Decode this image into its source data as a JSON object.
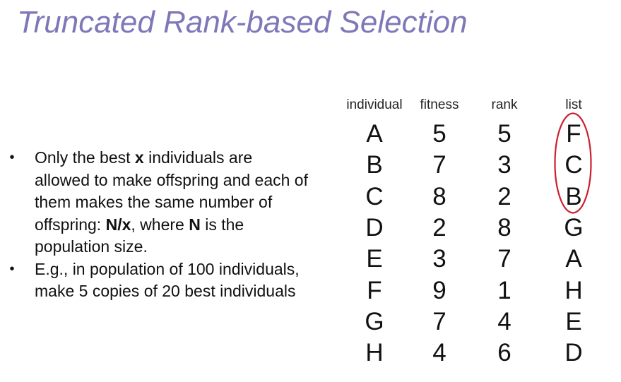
{
  "slide": {
    "title": "Truncated Rank-based Selection",
    "title_color": "#7e78b8",
    "bullets": [
      {
        "marker": "•",
        "segments": [
          {
            "text": "Only the best ",
            "bold": false
          },
          {
            "text": "x",
            "bold": true
          },
          {
            "text": " individuals are allowed to make offspring and each of them makes the same number of offspring: ",
            "bold": false
          },
          {
            "text": "N/x",
            "bold": true
          },
          {
            "text": ", where ",
            "bold": false
          },
          {
            "text": "N",
            "bold": true
          },
          {
            "text": " is the population size.",
            "bold": false
          }
        ]
      },
      {
        "marker": "•",
        "segments": [
          {
            "text": "E.g., in population of 100 individuals, make 5 copies of 20 best individuals",
            "bold": false
          }
        ]
      }
    ]
  },
  "table": {
    "headers": {
      "individual": "individual",
      "fitness": "fitness",
      "rank": "rank",
      "list": "list"
    },
    "rows": [
      {
        "individual": "A",
        "fitness": "5",
        "rank": "5",
        "list": "F"
      },
      {
        "individual": "B",
        "fitness": "7",
        "rank": "3",
        "list": "C"
      },
      {
        "individual": "C",
        "fitness": "8",
        "rank": "2",
        "list": "B"
      },
      {
        "individual": "D",
        "fitness": "2",
        "rank": "8",
        "list": "G"
      },
      {
        "individual": "E",
        "fitness": "3",
        "rank": "7",
        "list": "A"
      },
      {
        "individual": "F",
        "fitness": "9",
        "rank": "1",
        "list": "H"
      },
      {
        "individual": "G",
        "fitness": "7",
        "rank": "4",
        "list": "E"
      },
      {
        "individual": "H",
        "fitness": "4",
        "rank": "6",
        "list": "D"
      }
    ],
    "highlight": {
      "rows_selected": 3,
      "color": "#cc1f2d"
    }
  }
}
